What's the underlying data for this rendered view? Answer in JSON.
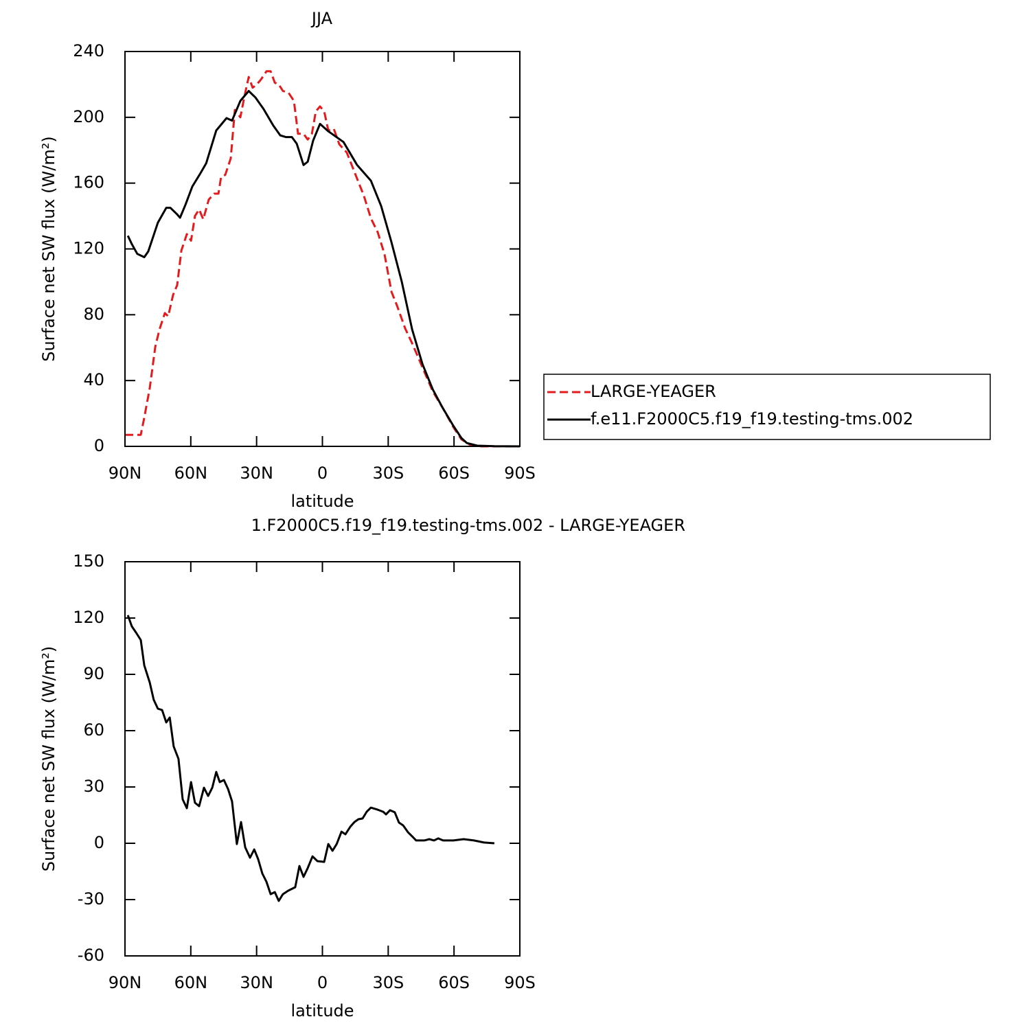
{
  "chart_data": [
    {
      "type": "line",
      "title": "JJA",
      "xlabel": "latitude",
      "ylabel": "Surface net SW flux (W/m²)",
      "xlim": [
        90,
        -90
      ],
      "xticks": [
        {
          "value": 90,
          "label": "90N"
        },
        {
          "value": 60,
          "label": "60N"
        },
        {
          "value": 30,
          "label": "30N"
        },
        0,
        {
          "value": -30,
          "label": "30S"
        },
        {
          "value": -60,
          "label": "60S"
        },
        {
          "value": -90,
          "label": "90S"
        }
      ],
      "ylim": [
        0,
        240
      ],
      "yticks": [
        0,
        40,
        80,
        120,
        160,
        200,
        240
      ],
      "legend": "right",
      "series": [
        {
          "name": "LARGE-YEAGER",
          "color": "#e41a1c",
          "linestyle": "dashed",
          "x": [
            90,
            88.7,
            85.9,
            82.8,
            81.2,
            78.7,
            76.2,
            74.3,
            71.8,
            70.3,
            68.1,
            66.2,
            64.3,
            61.8,
            59.9,
            58.1,
            56.2,
            54.3,
            51.8,
            49.3,
            47.4,
            46.2,
            44.3,
            41.8,
            39.9,
            37.4,
            35.5,
            33.6,
            31.8,
            29.9,
            28,
            25.5,
            23.6,
            21.7,
            19.9,
            18,
            15.5,
            13,
            11.1,
            8.6,
            6.7,
            4.8,
            3,
            1.1,
            -0.8,
            -2.7,
            -5.2,
            -7.7,
            -11.1,
            -14.3,
            -16.4,
            -18.9,
            -22.1,
            -25.2,
            -28.3,
            -31.5,
            -34,
            -37.7,
            -40.9,
            -45.6,
            -50.3,
            -55,
            -59.7,
            -63.4,
            -67.5,
            -72.2,
            -90
          ],
          "values": [
            7,
            7,
            7,
            7,
            17.5,
            35.5,
            60.5,
            71,
            81,
            79,
            92,
            98,
            119,
            129,
            125,
            140,
            144,
            138,
            150,
            153.6,
            153.6,
            163.6,
            165,
            175,
            204.5,
            200,
            213,
            224.5,
            218,
            220,
            223,
            228,
            228,
            221,
            220,
            216,
            215,
            210,
            190,
            190,
            186.5,
            190,
            203.6,
            206.6,
            203.6,
            192,
            193,
            183.6,
            178.6,
            167.8,
            160.7,
            152.3,
            138.6,
            130.2,
            116.9,
            93.9,
            85.6,
            71.8,
            62.6,
            48,
            33.4,
            23,
            11.7,
            4.2,
            0.8,
            0,
            0
          ]
        },
        {
          "name": "f.e11.F2000C5.f19_f19.testing-tms.002",
          "color": "#000000",
          "linestyle": "solid",
          "x": [
            88.7,
            86.9,
            84.4,
            81.2,
            79.4,
            75,
            71.2,
            69.3,
            66.2,
            64.9,
            62.4,
            59.3,
            55.6,
            53,
            48.4,
            43.7,
            41.2,
            37.4,
            33.6,
            30.5,
            26.8,
            22.4,
            19.2,
            16.7,
            13.9,
            11.7,
            8.6,
            6.7,
            4.2,
            1.1,
            -2.7,
            -9.6,
            -15.8,
            -22.1,
            -26.8,
            -31.5,
            -36.2,
            -40.9,
            -45.6,
            -50.3,
            -55,
            -59.7,
            -63.4,
            -65.9,
            -70.6,
            -78.4,
            -90
          ],
          "values": [
            128,
            123,
            117,
            115,
            118.5,
            136,
            145,
            145,
            141,
            139,
            147,
            158,
            166,
            172,
            192,
            199.5,
            198,
            210,
            216,
            212,
            205,
            195,
            189,
            188,
            188,
            184,
            171,
            173,
            186,
            196,
            191.5,
            185,
            171,
            161.5,
            146,
            124,
            100,
            71,
            50,
            34.6,
            23,
            12.5,
            5,
            2,
            0.4,
            0.1,
            0
          ]
        }
      ]
    },
    {
      "type": "line",
      "title": "1.F2000C5.f19_f19.testing-tms.002 - LARGE-YEAGER",
      "xlabel": "latitude",
      "ylabel": "Surface net SW flux (W/m²)",
      "xlim": [
        90,
        -90
      ],
      "xticks": [
        {
          "value": 90,
          "label": "90N"
        },
        {
          "value": 60,
          "label": "60N"
        },
        {
          "value": 30,
          "label": "30N"
        },
        0,
        {
          "value": -30,
          "label": "30S"
        },
        {
          "value": -60,
          "label": "60S"
        },
        {
          "value": -90,
          "label": "90S"
        }
      ],
      "ylim": [
        -60,
        150
      ],
      "yticks": [
        -60,
        -30,
        0,
        30,
        60,
        90,
        120,
        150
      ],
      "color": "#000000",
      "x": [
        88.7,
        86.9,
        85,
        82.8,
        81.2,
        78.7,
        76.9,
        75,
        73.1,
        71.2,
        69.6,
        67.8,
        65.6,
        63.7,
        61.8,
        59.9,
        58.1,
        56.2,
        54,
        52.1,
        50.2,
        48.4,
        46.8,
        44.9,
        43,
        41.2,
        39,
        37.1,
        35.2,
        33,
        31.1,
        29.3,
        27.4,
        25.5,
        23.6,
        21.7,
        19.9,
        18,
        15.5,
        12.4,
        10.5,
        8.6,
        6.7,
        4.5,
        2.3,
        -0.8,
        -2.7,
        -4.6,
        -6.5,
        -8.7,
        -10.5,
        -12.7,
        -14.6,
        -16.4,
        -18.3,
        -20.2,
        -22.1,
        -25.2,
        -27.7,
        -29,
        -30.8,
        -33,
        -34.9,
        -36.8,
        -39,
        -40.9,
        -42.7,
        -46.5,
        -48.7,
        -50.9,
        -52.8,
        -55,
        -59.7,
        -64.4,
        -69.1,
        -73.7,
        -78.4
      ],
      "values": [
        121.5,
        115.6,
        112.3,
        108.3,
        94.8,
        85.6,
        76.5,
        71.7,
        71,
        64.4,
        67,
        51.6,
        45,
        23.4,
        18.7,
        32.6,
        21.6,
        19.8,
        29.6,
        25.2,
        29.6,
        38,
        32.6,
        33.7,
        28.9,
        22.3,
        -0.4,
        11.3,
        -2.2,
        -7.7,
        -3.3,
        -8.4,
        -16.1,
        -20.5,
        -27.1,
        -26,
        -30.7,
        -27.1,
        -25.2,
        -23.4,
        -12.1,
        -17.9,
        -13.2,
        -7,
        -9.5,
        -9.9,
        -0.4,
        -4,
        -0.4,
        6.2,
        4.8,
        8.8,
        11.3,
        12.8,
        13.2,
        16.8,
        19,
        17.9,
        16.8,
        15.4,
        17.6,
        16.5,
        11,
        9.5,
        5.9,
        3.7,
        1.5,
        1.5,
        2.2,
        1.5,
        2.6,
        1.5,
        1.5,
        2.2,
        1.5,
        0.4,
        0
      ]
    }
  ]
}
